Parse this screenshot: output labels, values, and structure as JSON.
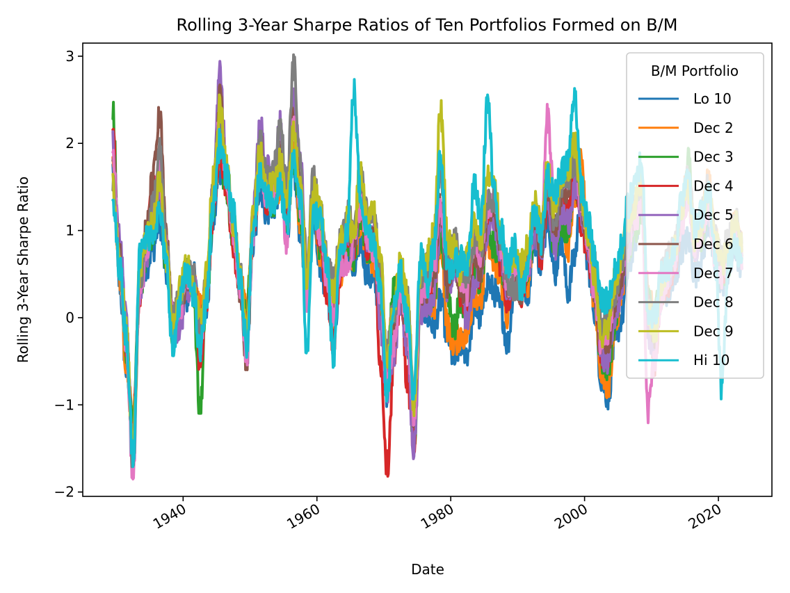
{
  "chart_data": {
    "type": "line",
    "title": "Rolling 3-Year Sharpe Ratios of Ten Portfolios Formed on B/M",
    "xlabel": "Date",
    "ylabel": "Rolling 3-Year Sharpe Ratio",
    "xlim": [
      1925,
      2028
    ],
    "ylim": [
      -2.05,
      3.15
    ],
    "x_ticks": [
      1940,
      1960,
      1980,
      2000,
      2020
    ],
    "x_tick_labels": [
      "1940",
      "1960",
      "1980",
      "2000",
      "2020"
    ],
    "y_ticks": [
      -2,
      -1,
      0,
      1,
      2,
      3
    ],
    "y_tick_labels": [
      "−2",
      "−1",
      "0",
      "1",
      "2",
      "3"
    ],
    "grid": false,
    "legend": {
      "title": "B/M Portfolio",
      "placement": "top-right"
    },
    "x": [
      1929.5,
      1930.5,
      1931.5,
      1932.5,
      1933.5,
      1934.5,
      1935.5,
      1936.5,
      1937.5,
      1938.5,
      1939.5,
      1940.5,
      1941.5,
      1942.5,
      1943.5,
      1944.5,
      1945.5,
      1946.5,
      1947.5,
      1948.5,
      1949.5,
      1950.5,
      1951.5,
      1952.5,
      1953.5,
      1954.5,
      1955.5,
      1956.5,
      1957.5,
      1958.5,
      1959.5,
      1960.5,
      1961.5,
      1962.5,
      1963.5,
      1964.5,
      1965.5,
      1966.5,
      1967.5,
      1968.5,
      1969.5,
      1970.5,
      1971.5,
      1972.5,
      1973.5,
      1974.5,
      1975.5,
      1976.5,
      1977.5,
      1978.5,
      1979.5,
      1980.5,
      1981.5,
      1982.5,
      1983.5,
      1984.5,
      1985.5,
      1986.5,
      1987.5,
      1988.5,
      1989.5,
      1990.5,
      1991.5,
      1992.5,
      1993.5,
      1994.5,
      1995.5,
      1996.5,
      1997.5,
      1998.5,
      1999.5,
      2000.5,
      2001.5,
      2002.5,
      2003.5,
      2004.5,
      2005.5,
      2006.5,
      2007.5,
      2008.5,
      2009.5,
      2010.5,
      2011.5,
      2012.5,
      2013.5,
      2014.5,
      2015.5,
      2016.5,
      2017.5,
      2018.5,
      2019.5,
      2020.5,
      2021.5,
      2022.5,
      2023.5
    ],
    "series": [
      {
        "name": "Lo 10",
        "color": "#1f77b4",
        "values": [
          1.7,
          0.4,
          -0.6,
          -1.3,
          0.3,
          0.6,
          0.8,
          1.1,
          0.5,
          -0.2,
          0.1,
          0.2,
          0.5,
          0.0,
          0.1,
          1.1,
          1.7,
          1.6,
          0.9,
          0.4,
          0.0,
          0.8,
          1.5,
          1.2,
          1.3,
          1.4,
          1.0,
          1.7,
          1.0,
          0.3,
          1.2,
          0.6,
          0.3,
          -0.3,
          0.6,
          0.8,
          0.5,
          0.9,
          0.5,
          0.4,
          0.1,
          -0.9,
          0.1,
          0.3,
          -0.3,
          -1.1,
          0.2,
          0.0,
          -0.1,
          0.2,
          -0.2,
          -0.5,
          -0.3,
          -0.4,
          0.1,
          0.0,
          0.4,
          0.3,
          0.1,
          -0.3,
          0.4,
          0.5,
          0.3,
          0.9,
          0.6,
          1.2,
          0.5,
          0.9,
          0.3,
          0.7,
          1.4,
          0.6,
          0.1,
          -0.7,
          -0.9,
          -0.3,
          0.0,
          0.5,
          0.9,
          1.3,
          0.1,
          -0.3,
          0.2,
          0.3,
          0.4,
          0.8,
          0.9,
          0.5,
          0.7,
          1.1,
          0.6,
          0.4,
          0.5,
          0.8,
          0.5
        ]
      },
      {
        "name": "Dec 2",
        "color": "#ff7f0e",
        "values": [
          1.9,
          0.5,
          -0.5,
          -1.2,
          0.4,
          0.8,
          1.3,
          1.5,
          0.7,
          -0.1,
          0.2,
          0.4,
          0.6,
          0.1,
          0.3,
          1.3,
          1.9,
          1.5,
          0.9,
          0.4,
          0.1,
          1.0,
          1.7,
          1.3,
          1.4,
          1.5,
          1.2,
          2.0,
          1.0,
          0.5,
          1.3,
          0.7,
          0.4,
          0.0,
          0.5,
          0.9,
          0.7,
          1.1,
          0.8,
          0.6,
          0.2,
          -0.6,
          0.3,
          0.5,
          -0.2,
          -1.0,
          0.3,
          0.3,
          0.1,
          0.9,
          -0.1,
          -0.3,
          -0.2,
          -0.2,
          0.3,
          0.2,
          0.9,
          0.6,
          0.4,
          0.0,
          0.6,
          0.5,
          0.4,
          1.1,
          0.9,
          1.5,
          0.9,
          1.3,
          0.8,
          1.4,
          1.8,
          0.9,
          0.2,
          -0.6,
          -0.8,
          -0.2,
          0.3,
          0.8,
          1.2,
          1.4,
          0.3,
          0.0,
          0.4,
          0.6,
          0.8,
          1.3,
          1.6,
          0.9,
          1.1,
          1.6,
          0.9,
          0.6,
          0.8,
          1.1,
          0.8
        ]
      },
      {
        "name": "Dec 3",
        "color": "#2ca02c",
        "values": [
          2.4,
          0.6,
          -0.4,
          -1.3,
          0.3,
          0.7,
          1.0,
          1.4,
          0.6,
          -0.2,
          0.1,
          0.5,
          0.3,
          -1.1,
          0.2,
          1.2,
          1.9,
          1.4,
          0.9,
          0.3,
          0.1,
          1.0,
          1.8,
          1.4,
          1.3,
          1.6,
          1.1,
          1.8,
          1.2,
          0.4,
          1.4,
          0.8,
          0.4,
          0.1,
          0.6,
          0.9,
          0.7,
          1.2,
          0.8,
          0.7,
          0.2,
          -0.5,
          0.3,
          0.4,
          0.0,
          -1.6,
          0.2,
          0.2,
          0.3,
          1.0,
          0.3,
          -0.1,
          0.2,
          0.0,
          0.5,
          0.4,
          1.1,
          0.8,
          0.6,
          0.3,
          0.5,
          0.4,
          0.5,
          1.0,
          0.9,
          1.4,
          0.8,
          1.1,
          1.0,
          1.5,
          1.3,
          0.8,
          0.3,
          -0.5,
          -0.6,
          -0.1,
          0.4,
          0.8,
          1.0,
          1.2,
          0.2,
          0.1,
          0.3,
          0.5,
          0.7,
          1.2,
          1.8,
          0.8,
          0.9,
          1.3,
          0.8,
          0.5,
          0.6,
          1.0,
          0.7
        ]
      },
      {
        "name": "Dec 4",
        "color": "#d62728",
        "values": [
          2.1,
          0.6,
          -0.3,
          -1.4,
          0.3,
          0.9,
          1.5,
          1.7,
          0.8,
          -0.1,
          0.0,
          0.4,
          0.4,
          -0.5,
          0.2,
          1.2,
          1.9,
          1.5,
          0.8,
          0.3,
          -0.1,
          1.0,
          1.7,
          1.3,
          1.5,
          1.7,
          1.2,
          2.3,
          1.4,
          0.3,
          1.3,
          0.8,
          0.3,
          -0.3,
          0.5,
          1.0,
          0.8,
          1.4,
          0.8,
          0.9,
          -0.5,
          -1.7,
          -0.5,
          0.2,
          -0.7,
          -1.4,
          0.3,
          0.2,
          0.5,
          1.2,
          0.5,
          0.7,
          0.3,
          0.1,
          0.8,
          0.4,
          1.2,
          1.3,
          0.6,
          0.2,
          0.5,
          0.2,
          0.6,
          1.1,
          0.7,
          1.3,
          0.9,
          1.4,
          1.2,
          1.6,
          1.1,
          0.7,
          0.3,
          -0.4,
          -0.4,
          0.1,
          0.5,
          0.9,
          1.2,
          1.5,
          0.0,
          -0.5,
          0.3,
          0.4,
          0.6,
          1.1,
          1.5,
          0.8,
          1.0,
          1.3,
          0.8,
          0.5,
          0.7,
          1.0,
          0.7
        ]
      },
      {
        "name": "Dec 5",
        "color": "#9467bd",
        "values": [
          2.0,
          0.9,
          0.0,
          -1.5,
          0.2,
          0.7,
          1.2,
          1.5,
          0.7,
          -0.2,
          -0.1,
          0.3,
          0.5,
          -0.3,
          0.3,
          1.5,
          2.8,
          1.7,
          1.0,
          0.4,
          -0.5,
          1.2,
          2.2,
          1.7,
          1.6,
          2.2,
          1.4,
          2.5,
          1.8,
          0.5,
          1.5,
          1.0,
          0.5,
          0.1,
          0.6,
          1.0,
          0.8,
          1.4,
          0.9,
          1.0,
          -0.1,
          -0.9,
          -0.4,
          0.2,
          -0.3,
          -1.5,
          0.1,
          0.1,
          0.3,
          1.1,
          0.3,
          0.6,
          0.5,
          -0.1,
          0.4,
          0.6,
          1.0,
          1.1,
          0.7,
          0.3,
          0.6,
          0.5,
          0.5,
          1.0,
          0.8,
          1.4,
          0.8,
          1.2,
          1.1,
          1.5,
          1.2,
          0.8,
          0.3,
          -0.4,
          -0.5,
          0.0,
          0.3,
          0.8,
          1.2,
          1.4,
          -0.2,
          -0.3,
          0.4,
          0.5,
          0.7,
          1.1,
          1.5,
          0.8,
          1.0,
          1.4,
          0.8,
          0.6,
          0.7,
          1.0,
          0.7
        ]
      },
      {
        "name": "Dec 6",
        "color": "#8c564b",
        "values": [
          1.9,
          0.7,
          -0.2,
          -1.4,
          0.4,
          1.0,
          1.6,
          2.3,
          0.9,
          0.0,
          0.1,
          0.4,
          0.5,
          -0.2,
          0.3,
          1.3,
          2.5,
          1.6,
          1.0,
          0.3,
          -0.5,
          1.1,
          2.0,
          1.5,
          1.6,
          1.9,
          1.4,
          2.3,
          1.5,
          0.5,
          1.4,
          0.9,
          0.5,
          0.2,
          0.7,
          1.1,
          0.9,
          1.5,
          1.0,
          0.9,
          0.4,
          -0.7,
          -0.2,
          0.3,
          -0.1,
          -1.1,
          0.3,
          0.3,
          0.5,
          1.3,
          0.4,
          0.7,
          0.3,
          0.3,
          0.8,
          0.5,
          1.2,
          1.2,
          0.8,
          0.4,
          0.5,
          0.3,
          0.6,
          1.1,
          0.8,
          1.5,
          1.0,
          1.4,
          1.5,
          2.0,
          1.3,
          0.9,
          0.3,
          -0.3,
          -0.3,
          0.2,
          0.5,
          1.0,
          1.2,
          1.5,
          0.1,
          -0.2,
          0.4,
          0.6,
          0.7,
          1.2,
          1.6,
          0.9,
          1.1,
          1.4,
          0.8,
          0.6,
          0.8,
          1.1,
          0.8
        ]
      },
      {
        "name": "Dec 7",
        "color": "#e377c2",
        "values": [
          1.8,
          0.6,
          -0.3,
          -1.8,
          0.3,
          0.8,
          1.2,
          1.7,
          0.8,
          0.0,
          0.1,
          0.5,
          0.4,
          -0.3,
          0.3,
          1.4,
          2.3,
          1.5,
          1.0,
          0.4,
          -0.4,
          1.0,
          1.7,
          1.4,
          1.4,
          1.6,
          0.8,
          2.2,
          1.3,
          0.2,
          1.3,
          1.0,
          0.4,
          0.0,
          0.6,
          0.6,
          0.9,
          1.3,
          0.9,
          0.8,
          0.2,
          -0.8,
          -0.3,
          0.3,
          -0.1,
          -1.2,
          0.3,
          0.4,
          0.6,
          1.3,
          0.6,
          0.8,
          0.4,
          0.3,
          0.9,
          0.6,
          1.3,
          1.3,
          0.8,
          0.4,
          0.6,
          0.4,
          0.6,
          1.2,
          1.0,
          2.3,
          1.3,
          1.6,
          1.6,
          1.9,
          1.3,
          0.9,
          0.3,
          -0.3,
          -0.2,
          0.3,
          0.6,
          1.0,
          1.1,
          1.3,
          -1.05,
          -0.5,
          0.2,
          0.5,
          0.7,
          1.1,
          1.4,
          0.8,
          1.0,
          1.3,
          0.7,
          0.5,
          0.7,
          1.0,
          0.7
        ]
      },
      {
        "name": "Dec 8",
        "color": "#7f7f7f",
        "values": [
          1.6,
          0.6,
          -0.2,
          -1.7,
          0.4,
          0.9,
          1.3,
          1.9,
          0.8,
          0.0,
          0.2,
          0.5,
          0.5,
          -0.1,
          0.4,
          1.5,
          2.3,
          1.6,
          1.1,
          0.5,
          -0.3,
          1.2,
          2.0,
          1.6,
          1.7,
          2.2,
          1.5,
          2.9,
          1.7,
          0.6,
          1.6,
          1.2,
          0.7,
          0.4,
          0.9,
          1.2,
          1.1,
          1.6,
          1.2,
          1.1,
          0.6,
          -0.4,
          0.1,
          0.5,
          0.2,
          -0.9,
          0.5,
          0.6,
          0.8,
          1.7,
          0.8,
          0.9,
          0.6,
          0.5,
          0.9,
          0.8,
          1.3,
          1.4,
          0.9,
          0.4,
          0.3,
          0.4,
          0.7,
          1.2,
          1.0,
          1.6,
          1.1,
          1.5,
          1.6,
          1.8,
          1.4,
          1.0,
          0.6,
          -0.1,
          0.0,
          0.3,
          0.6,
          1.0,
          1.3,
          1.5,
          0.2,
          -0.1,
          0.5,
          0.7,
          0.8,
          1.3,
          1.6,
          1.0,
          1.2,
          1.5,
          0.9,
          0.7,
          0.9,
          1.2,
          0.8
        ]
      },
      {
        "name": "Dec 9",
        "color": "#bcbd22",
        "values": [
          1.5,
          0.6,
          -0.1,
          -1.5,
          0.5,
          0.9,
          1.1,
          1.6,
          0.7,
          -0.1,
          0.3,
          0.6,
          0.4,
          0.0,
          0.5,
          1.6,
          2.4,
          1.7,
          1.1,
          0.5,
          -0.2,
          1.2,
          1.9,
          1.5,
          1.5,
          1.8,
          1.3,
          2.1,
          1.6,
          0.4,
          1.5,
          1.2,
          0.6,
          0.3,
          0.9,
          1.1,
          1.0,
          1.7,
          1.1,
          1.2,
          0.6,
          -0.5,
          0.1,
          0.6,
          0.3,
          -1.0,
          0.6,
          0.7,
          1.0,
          2.4,
          0.9,
          0.8,
          0.5,
          0.7,
          1.1,
          0.9,
          1.6,
          1.5,
          1.0,
          0.6,
          0.6,
          0.6,
          0.8,
          1.3,
          1.1,
          1.7,
          1.2,
          1.6,
          1.7,
          2.0,
          1.4,
          1.0,
          0.5,
          -0.2,
          -0.1,
          0.4,
          0.7,
          1.1,
          1.3,
          1.6,
          0.1,
          -0.2,
          0.4,
          0.6,
          0.8,
          1.3,
          1.5,
          0.9,
          1.1,
          1.5,
          0.9,
          0.6,
          0.8,
          1.1,
          0.8
        ]
      },
      {
        "name": "Hi 10",
        "color": "#17becf",
        "values": [
          1.3,
          0.6,
          -0.2,
          -1.6,
          0.7,
          0.9,
          1.0,
          1.2,
          0.6,
          -0.4,
          0.2,
          0.5,
          0.3,
          -0.4,
          0.2,
          1.3,
          2.0,
          1.6,
          1.2,
          0.4,
          -0.3,
          1.1,
          1.6,
          1.4,
          1.3,
          1.5,
          1.0,
          1.8,
          1.4,
          -0.4,
          1.2,
          1.1,
          0.6,
          -0.5,
          0.8,
          1.0,
          2.6,
          1.4,
          1.0,
          0.9,
          0.3,
          -0.9,
          0.2,
          0.5,
          0.0,
          -0.9,
          0.7,
          0.4,
          0.8,
          1.9,
          0.5,
          0.6,
          0.7,
          0.6,
          1.5,
          1.1,
          2.5,
          1.4,
          1.0,
          0.6,
          0.8,
          0.3,
          0.6,
          1.2,
          0.9,
          1.6,
          1.4,
          1.7,
          1.8,
          2.6,
          1.5,
          1.1,
          0.7,
          0.2,
          0.2,
          0.5,
          0.8,
          1.3,
          1.5,
          1.8,
          0.1,
          0.0,
          0.5,
          0.6,
          0.8,
          1.4,
          1.7,
          1.0,
          1.2,
          1.5,
          0.7,
          -0.8,
          0.6,
          0.9,
          0.6
        ]
      }
    ]
  }
}
